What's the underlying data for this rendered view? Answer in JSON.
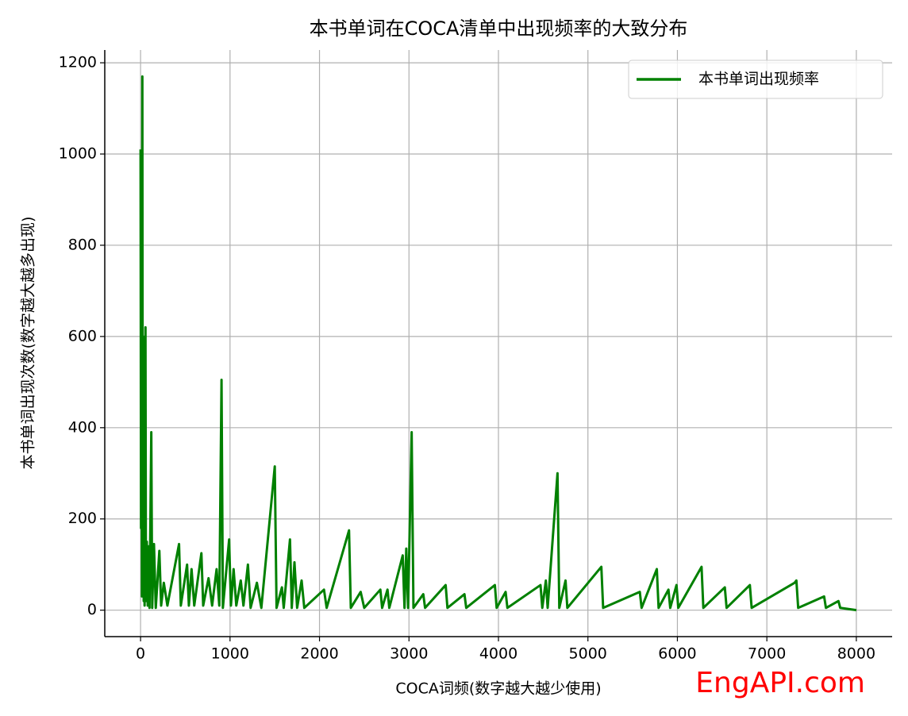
{
  "chart_data": {
    "type": "line",
    "title": "本书单词在COCA清单中出现频率的大致分布",
    "xlabel": "COCA词频(数字越大越少使用)",
    "ylabel": "本书单词出现次数(数字越大越多出现)",
    "watermark": "EngAPI.com",
    "grid": true,
    "legend": "upper right",
    "xlim": [
      -400,
      8400
    ],
    "ylim": [
      -58,
      1228
    ],
    "xticks": [
      0,
      1000,
      2000,
      3000,
      4000,
      5000,
      6000,
      7000,
      8000
    ],
    "yticks": [
      0,
      200,
      400,
      600,
      800,
      1000,
      1200
    ],
    "x": [
      0,
      5,
      10,
      15,
      20,
      25,
      30,
      35,
      40,
      45,
      55,
      60,
      70,
      80,
      90,
      100,
      120,
      130,
      150,
      170,
      210,
      230,
      260,
      300,
      430,
      450,
      520,
      540,
      570,
      600,
      680,
      700,
      760,
      800,
      850,
      880,
      905,
      920,
      990,
      1010,
      1040,
      1070,
      1120,
      1150,
      1200,
      1230,
      1300,
      1350,
      1500,
      1520,
      1580,
      1600,
      1670,
      1690,
      1720,
      1750,
      1800,
      1830,
      2050,
      2080,
      2330,
      2350,
      2460,
      2500,
      2680,
      2700,
      2760,
      2780,
      2930,
      2950,
      2970,
      2990,
      3030,
      3050,
      3160,
      3180,
      3410,
      3430,
      3620,
      3640,
      3960,
      3980,
      4080,
      4100,
      4470,
      4490,
      4530,
      4550,
      4660,
      4680,
      4750,
      4770,
      5150,
      5170,
      5580,
      5600,
      5770,
      5790,
      5900,
      5920,
      5990,
      6010,
      6270,
      6290,
      6530,
      6550,
      6810,
      6830,
      7310,
      7330,
      7350,
      7640,
      7660,
      7800,
      7820,
      8000
    ],
    "series": [
      {
        "name": "本书单词出现频率",
        "color": "#008000",
        "values": [
          1010,
          180,
          800,
          30,
          1170,
          50,
          600,
          20,
          450,
          10,
          620,
          20,
          150,
          10,
          140,
          5,
          390,
          5,
          145,
          5,
          130,
          10,
          60,
          10,
          145,
          10,
          100,
          10,
          90,
          10,
          125,
          10,
          70,
          10,
          90,
          10,
          505,
          5,
          155,
          10,
          90,
          10,
          65,
          10,
          100,
          5,
          60,
          5,
          315,
          5,
          50,
          5,
          155,
          5,
          105,
          5,
          65,
          5,
          45,
          5,
          175,
          5,
          40,
          5,
          45,
          5,
          45,
          5,
          120,
          5,
          135,
          5,
          390,
          5,
          35,
          5,
          55,
          5,
          35,
          5,
          55,
          5,
          40,
          5,
          55,
          5,
          65,
          5,
          300,
          5,
          65,
          5,
          95,
          5,
          40,
          5,
          90,
          5,
          45,
          5,
          55,
          5,
          95,
          5,
          50,
          5,
          55,
          5,
          60,
          65,
          5,
          30,
          5,
          20,
          5,
          0
        ]
      }
    ]
  }
}
